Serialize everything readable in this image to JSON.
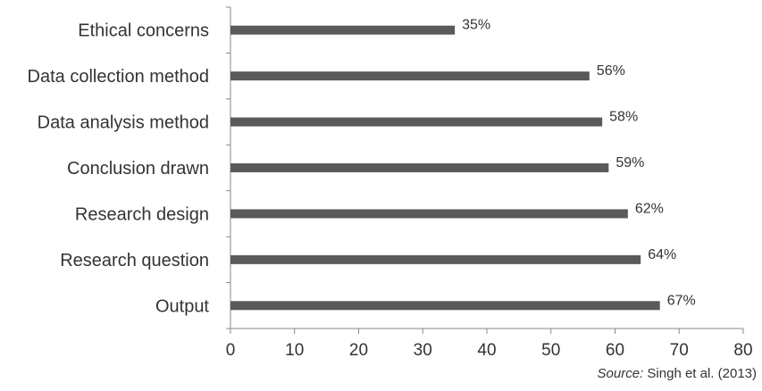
{
  "chart_data": {
    "type": "bar",
    "orientation": "horizontal",
    "categories": [
      "Ethical concerns",
      "Data collection method",
      "Data analysis method",
      "Conclusion drawn",
      "Research design",
      "Research question",
      "Output"
    ],
    "values": [
      35,
      56,
      58,
      59,
      62,
      64,
      67
    ],
    "value_labels": [
      "35%",
      "56%",
      "58%",
      "59%",
      "62%",
      "64%",
      "67%"
    ],
    "xlim": [
      0,
      80
    ],
    "xticks": [
      0,
      10,
      20,
      30,
      40,
      50,
      60,
      70,
      80
    ],
    "grid": false,
    "bar_color": "#5a5a5a"
  },
  "source": {
    "prefix": "Source:",
    "text": "Singh et al. (2013)"
  }
}
